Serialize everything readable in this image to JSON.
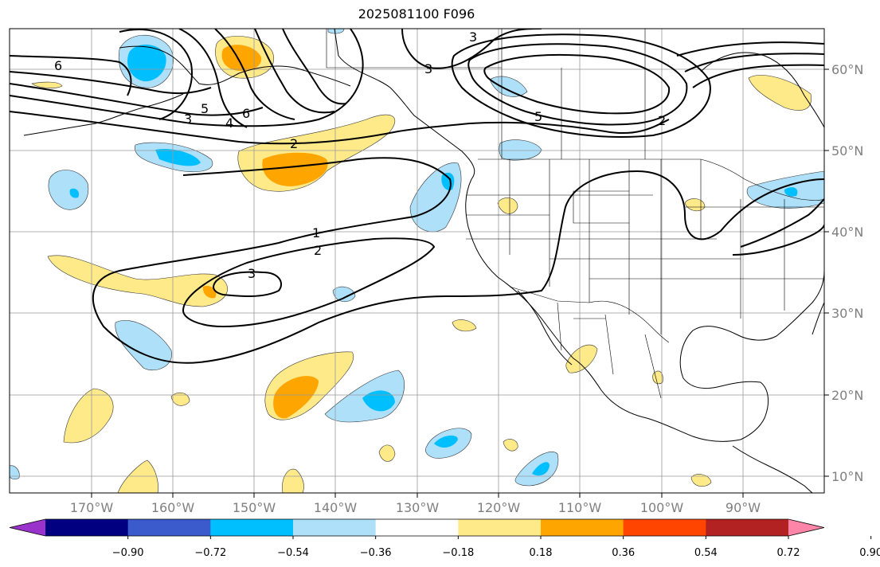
{
  "title": "2025081100 F096",
  "longitude_labels": [
    "170°W",
    "160°W",
    "150°W",
    "140°W",
    "130°W",
    "120°W",
    "110°W",
    "100°W",
    "90°W"
  ],
  "latitude_labels": [
    "60°N",
    "50°N",
    "40°N",
    "30°N",
    "20°N",
    "10°N"
  ],
  "colorbar": {
    "colors": [
      "#9933cc",
      "#000080",
      "#3b5bcc",
      "#00bfff",
      "#aee0fa",
      "#ffffff",
      "#ffea8a",
      "#ffa500",
      "#ff4500",
      "#b22222",
      "#ff85a8"
    ],
    "tick_labels": [
      "−0.90",
      "−0.72",
      "−0.54",
      "−0.36",
      "−0.18",
      "0.18",
      "0.36",
      "0.54",
      "0.72",
      "0.90"
    ]
  },
  "contour_labels": [
    "6",
    "5",
    "6",
    "3",
    "4",
    "2",
    "3",
    "3",
    "5",
    "2",
    "1",
    "2",
    "3"
  ]
}
